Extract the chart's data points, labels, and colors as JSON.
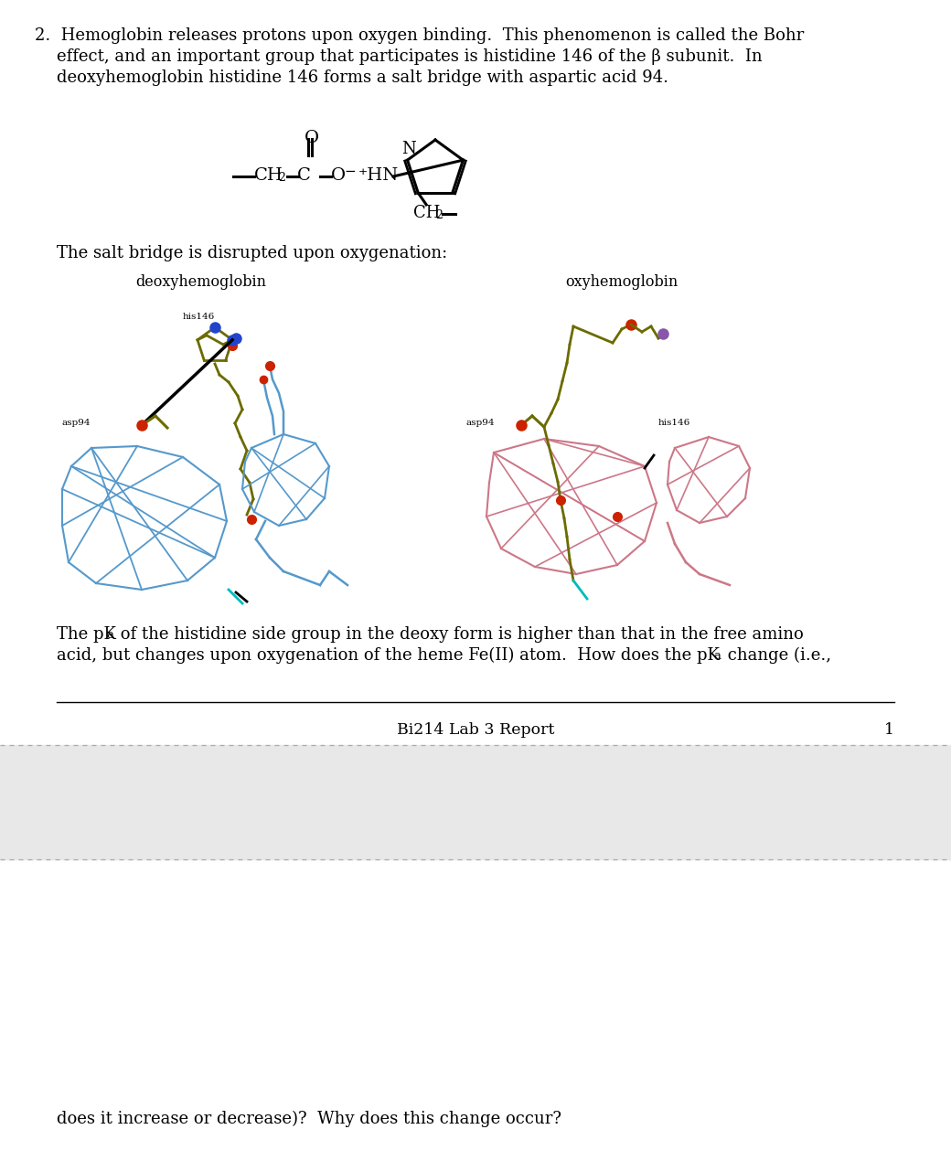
{
  "page_width": 10.4,
  "page_height": 12.82,
  "bg_color": "#ffffff",
  "gray_band_color": "#e8e8e8",
  "font_family": "serif",
  "main_text_1": "2.  Hemoglobin releases protons upon oxygen binding.  This phenomenon is called the Bohr",
  "main_text_2": "effect, and an important group that participates is histidine 146 of the β subunit.  In",
  "main_text_3": "deoxyhemoglobin histidine 146 forms a salt bridge with aspartic acid 94.",
  "salt_bridge_text": "The salt bridge is disrupted upon oxygenation:",
  "deoxy_label": "deoxyhemoglobin",
  "oxy_label": "oxyhemoglobin",
  "footer_text": "Bi214 Lab 3 Report",
  "footer_num": "1",
  "last_text": "does it increase or decrease)?  Why does this change occur?",
  "olive": "#6b6b00",
  "blue": "#5599cc",
  "pink": "#cc7788",
  "cyan": "#00bbbb",
  "red_dot": "#cc2200",
  "blue_dot": "#2244cc",
  "purple_dot": "#8855aa",
  "black": "#000000"
}
